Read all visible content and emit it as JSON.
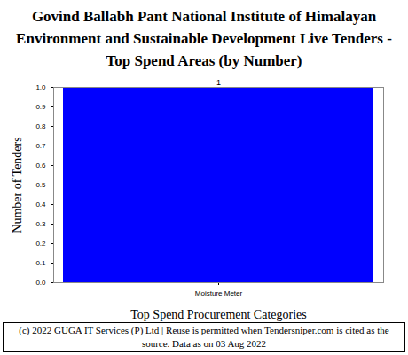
{
  "chart_data": {
    "type": "bar",
    "title": "Govind Ballabh Pant National Institute of Himalayan Environment and Sustainable Development Live Tenders - Top Spend Areas (by Number)",
    "x_label": "Top Spend Procurement Categories",
    "y_label": "Number of Tenders",
    "categories": [
      "Moisture Meter"
    ],
    "values": [
      1
    ],
    "color": "#0000ff",
    "ylim": [
      0,
      1
    ],
    "yticks": [
      {
        "value": 0,
        "label": "0.0"
      },
      0.1,
      0.2,
      0.3,
      0.4,
      0.5,
      0.6,
      0.7,
      0.8,
      0.9,
      {
        "value": 1,
        "label": "1.0"
      }
    ],
    "grid": false,
    "data_labels": true,
    "caption": "(c) 2022 GUGA IT Services (P) Ltd | Reuse is permitted when Tendersniper.com is cited as the source. Data as on 03 Aug 2022"
  }
}
